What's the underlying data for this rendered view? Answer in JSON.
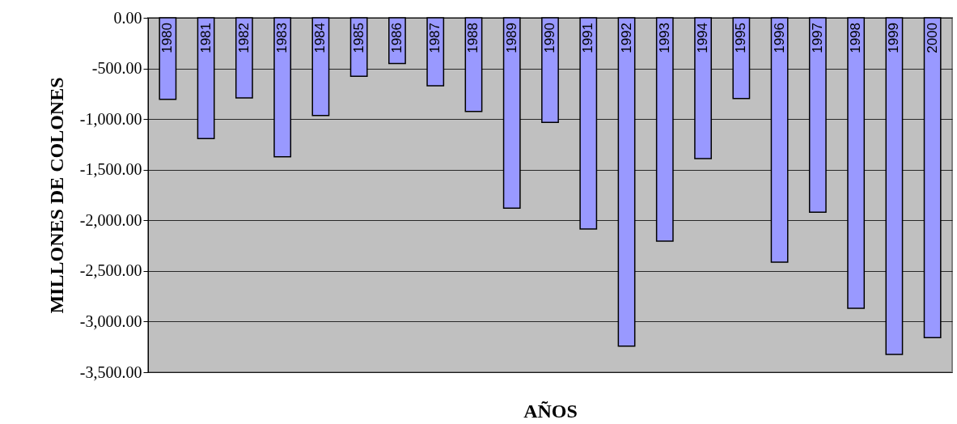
{
  "chart_data": {
    "type": "bar",
    "xlabel": "AÑOS",
    "ylabel": "MILLONES DE COLONES",
    "categories": [
      "1980",
      "1981",
      "1982",
      "1983",
      "1984",
      "1985",
      "1986",
      "1987",
      "1988",
      "1989",
      "1990",
      "1991",
      "1992",
      "1993",
      "1994",
      "1995",
      "1996",
      "1997",
      "1998",
      "1999",
      "2000"
    ],
    "values": [
      -805,
      -1193,
      -792,
      -1372,
      -965,
      -578,
      -452,
      -671,
      -925,
      -1880,
      -1032,
      -2086,
      -3243,
      -2206,
      -1390,
      -797,
      -2414,
      -1920,
      -2869,
      -3324,
      -3158
    ],
    "color": "#9999ff",
    "ylim": [
      -3500,
      0
    ],
    "yticks": [
      {
        "value": 0,
        "label": "0.00"
      },
      {
        "value": -500,
        "label": "-500.00"
      },
      {
        "value": -1000,
        "label": "-1,000.00"
      },
      {
        "value": -1500,
        "label": "-1,500.00"
      },
      {
        "value": -2000,
        "label": "-2,000.00"
      },
      {
        "value": -2500,
        "label": "-2,500.00"
      },
      {
        "value": -3000,
        "label": "-3,000.00"
      },
      {
        "value": -3500,
        "label": "-3,500.00"
      }
    ],
    "grid": "y"
  }
}
